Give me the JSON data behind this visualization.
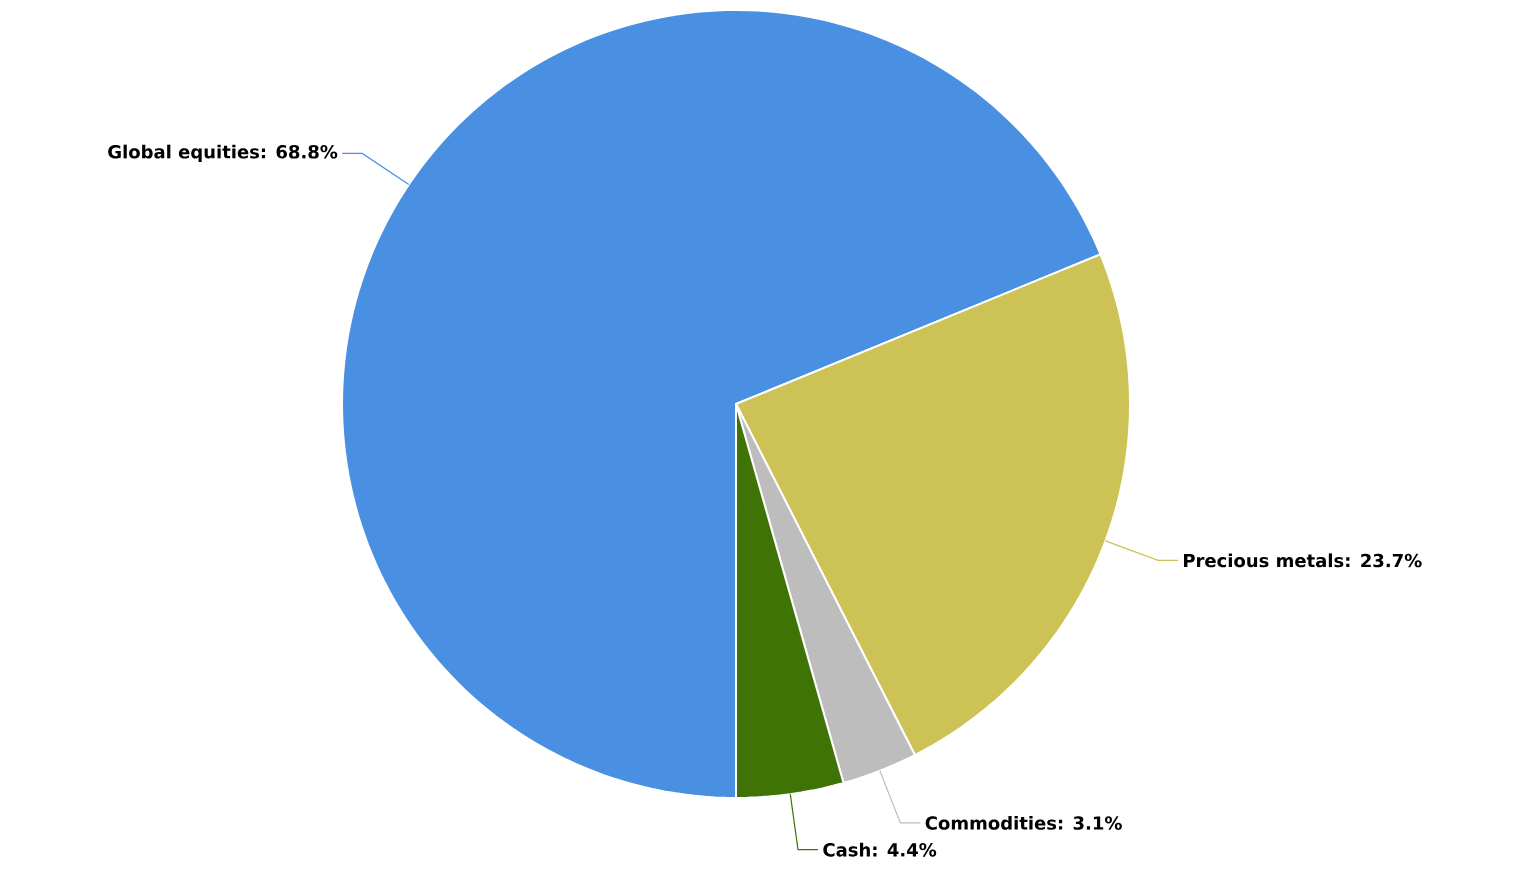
{
  "chart_data": {
    "type": "pie",
    "categories": [
      "Global equities",
      "Precious metals",
      "Commodities",
      "Cash"
    ],
    "values": [
      68.8,
      23.7,
      3.1,
      4.4
    ],
    "value_labels": [
      ": 68.8%",
      ": 23.7%",
      ": 3.1%",
      ": 4.4%"
    ],
    "colors": [
      "#4a90e2",
      "#cdc255",
      "#bdbdbd",
      "#3f7306"
    ]
  }
}
